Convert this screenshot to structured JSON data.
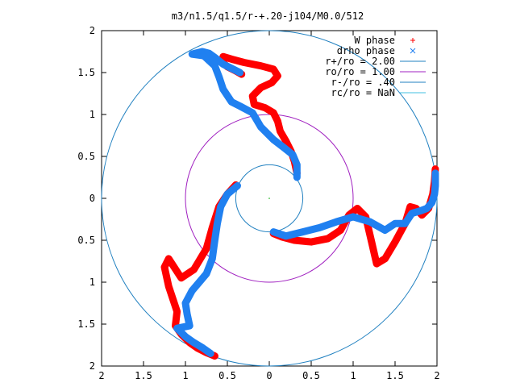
{
  "chart_data": {
    "type": "scatter",
    "title": "m3/n1.5/q1.5/r-+.20-j104/M0.0/512",
    "xlim": [
      -2,
      2
    ],
    "ylim": [
      -2,
      2
    ],
    "x_ticks": [
      {
        "value": -2,
        "label": "2"
      },
      {
        "value": -1.5,
        "label": "1.5"
      },
      {
        "value": -1,
        "label": "1"
      },
      {
        "value": -0.5,
        "label": "0.5"
      },
      {
        "value": 0,
        "label": "0"
      },
      {
        "value": 0.5,
        "label": "0.5"
      },
      {
        "value": 1,
        "label": "1"
      },
      {
        "value": 1.5,
        "label": "1.5"
      },
      {
        "value": 2,
        "label": "2"
      }
    ],
    "y_ticks": [
      {
        "value": 2,
        "label": "2"
      },
      {
        "value": 1.5,
        "label": "1.5"
      },
      {
        "value": 1,
        "label": "1"
      },
      {
        "value": 0.5,
        "label": "0.5"
      },
      {
        "value": 0,
        "label": "0"
      },
      {
        "value": -0.5,
        "label": "0.5"
      },
      {
        "value": -1,
        "label": "1"
      },
      {
        "value": -1.5,
        "label": "1.5"
      },
      {
        "value": -2,
        "label": "2"
      }
    ],
    "legend_position": "top-right",
    "series": [
      {
        "name": "W phase",
        "marker": "plus",
        "color": "#ff0000",
        "arms": [
          [
            [
              -0.33,
              1.48
            ],
            [
              -0.4,
              1.52
            ],
            [
              -0.5,
              1.57
            ],
            [
              -0.57,
              1.63
            ],
            [
              -0.55,
              1.69
            ],
            [
              -0.45,
              1.66
            ],
            [
              -0.3,
              1.62
            ],
            [
              -0.1,
              1.58
            ],
            [
              0.05,
              1.54
            ],
            [
              0.1,
              1.46
            ],
            [
              0.03,
              1.38
            ],
            [
              -0.1,
              1.32
            ],
            [
              -0.2,
              1.22
            ],
            [
              -0.18,
              1.12
            ],
            [
              -0.05,
              1.08
            ],
            [
              0.05,
              1.02
            ],
            [
              0.1,
              0.92
            ],
            [
              0.13,
              0.8
            ],
            [
              0.2,
              0.68
            ],
            [
              0.26,
              0.56
            ],
            [
              0.3,
              0.44
            ],
            [
              0.33,
              0.3
            ]
          ],
          [
            [
              0.05,
              -0.42
            ],
            [
              0.15,
              -0.46
            ],
            [
              0.3,
              -0.5
            ],
            [
              0.5,
              -0.52
            ],
            [
              0.7,
              -0.48
            ],
            [
              0.85,
              -0.38
            ],
            [
              0.95,
              -0.2
            ],
            [
              1.05,
              -0.12
            ],
            [
              1.15,
              -0.22
            ],
            [
              1.22,
              -0.52
            ],
            [
              1.28,
              -0.78
            ],
            [
              1.38,
              -0.72
            ],
            [
              1.5,
              -0.52
            ],
            [
              1.62,
              -0.3
            ],
            [
              1.68,
              -0.1
            ],
            [
              1.75,
              -0.12
            ],
            [
              1.82,
              -0.2
            ],
            [
              1.9,
              -0.12
            ],
            [
              1.95,
              0.05
            ],
            [
              1.97,
              0.2
            ],
            [
              1.98,
              0.35
            ]
          ],
          [
            [
              -0.4,
              0.16
            ],
            [
              -0.5,
              0.05
            ],
            [
              -0.6,
              -0.1
            ],
            [
              -0.68,
              -0.35
            ],
            [
              -0.75,
              -0.6
            ],
            [
              -0.9,
              -0.85
            ],
            [
              -1.05,
              -0.95
            ],
            [
              -1.2,
              -0.72
            ],
            [
              -1.25,
              -0.82
            ],
            [
              -1.2,
              -1.05
            ],
            [
              -1.15,
              -1.2
            ],
            [
              -1.1,
              -1.35
            ],
            [
              -1.12,
              -1.52
            ],
            [
              -1.05,
              -1.62
            ],
            [
              -0.95,
              -1.72
            ],
            [
              -0.85,
              -1.79
            ],
            [
              -0.75,
              -1.84
            ],
            [
              -0.65,
              -1.88
            ]
          ]
        ]
      },
      {
        "name": "drho phase",
        "marker": "cross",
        "color": "#2080f0",
        "arms": [
          [
            [
              -0.35,
              1.5
            ],
            [
              -0.45,
              1.55
            ],
            [
              -0.55,
              1.6
            ],
            [
              -0.65,
              1.68
            ],
            [
              -0.72,
              1.73
            ],
            [
              -0.8,
              1.75
            ],
            [
              -0.92,
              1.72
            ],
            [
              -0.78,
              1.7
            ],
            [
              -0.65,
              1.58
            ],
            [
              -0.6,
              1.45
            ],
            [
              -0.55,
              1.3
            ],
            [
              -0.45,
              1.15
            ],
            [
              -0.35,
              1.1
            ],
            [
              -0.2,
              1.02
            ],
            [
              -0.1,
              0.85
            ],
            [
              0.05,
              0.7
            ],
            [
              0.18,
              0.6
            ],
            [
              0.28,
              0.52
            ],
            [
              0.33,
              0.4
            ],
            [
              0.33,
              0.25
            ]
          ],
          [
            [
              0.05,
              -0.4
            ],
            [
              0.2,
              -0.45
            ],
            [
              0.4,
              -0.4
            ],
            [
              0.6,
              -0.35
            ],
            [
              0.8,
              -0.28
            ],
            [
              1.0,
              -0.22
            ],
            [
              1.2,
              -0.28
            ],
            [
              1.38,
              -0.38
            ],
            [
              1.5,
              -0.3
            ],
            [
              1.62,
              -0.3
            ],
            [
              1.7,
              -0.18
            ],
            [
              1.8,
              -0.15
            ],
            [
              1.88,
              -0.12
            ],
            [
              1.94,
              -0.05
            ],
            [
              1.97,
              0.05
            ],
            [
              1.98,
              0.15
            ],
            [
              1.98,
              0.3
            ]
          ],
          [
            [
              -0.38,
              0.15
            ],
            [
              -0.5,
              0.05
            ],
            [
              -0.58,
              -0.1
            ],
            [
              -0.62,
              -0.3
            ],
            [
              -0.65,
              -0.5
            ],
            [
              -0.68,
              -0.72
            ],
            [
              -0.75,
              -0.9
            ],
            [
              -0.92,
              -1.1
            ],
            [
              -1.0,
              -1.25
            ],
            [
              -0.98,
              -1.38
            ],
            [
              -0.95,
              -1.52
            ],
            [
              -1.1,
              -1.55
            ],
            [
              -1.0,
              -1.65
            ],
            [
              -0.9,
              -1.72
            ],
            [
              -0.8,
              -1.78
            ],
            [
              -0.7,
              -1.85
            ]
          ]
        ]
      },
      {
        "name": "r+/ro = 2.00",
        "type": "circle",
        "radius": 2.0,
        "color": "#2080c0"
      },
      {
        "name": "ro/ro = 1.00",
        "type": "circle",
        "radius": 1.0,
        "color": "#a020c0"
      },
      {
        "name": "r-/ro = .40",
        "type": "circle",
        "radius": 0.4,
        "color": "#2080c0"
      },
      {
        "name": "rc/ro = NaN",
        "type": "circle",
        "radius": null,
        "color": "#40c0e0"
      }
    ]
  }
}
